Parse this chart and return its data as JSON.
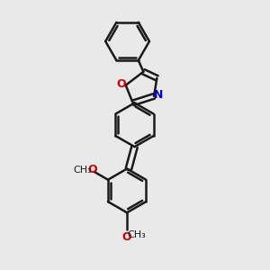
{
  "background_color": "#e9e9e9",
  "bond_color": "#1a1a1a",
  "N_color": "#0000cc",
  "O_color": "#cc0000",
  "line_width": 1.8,
  "figsize": [
    3.0,
    3.0
  ],
  "dpi": 100,
  "xlim": [
    -1.8,
    1.8
  ],
  "ylim": [
    -3.6,
    2.8
  ]
}
